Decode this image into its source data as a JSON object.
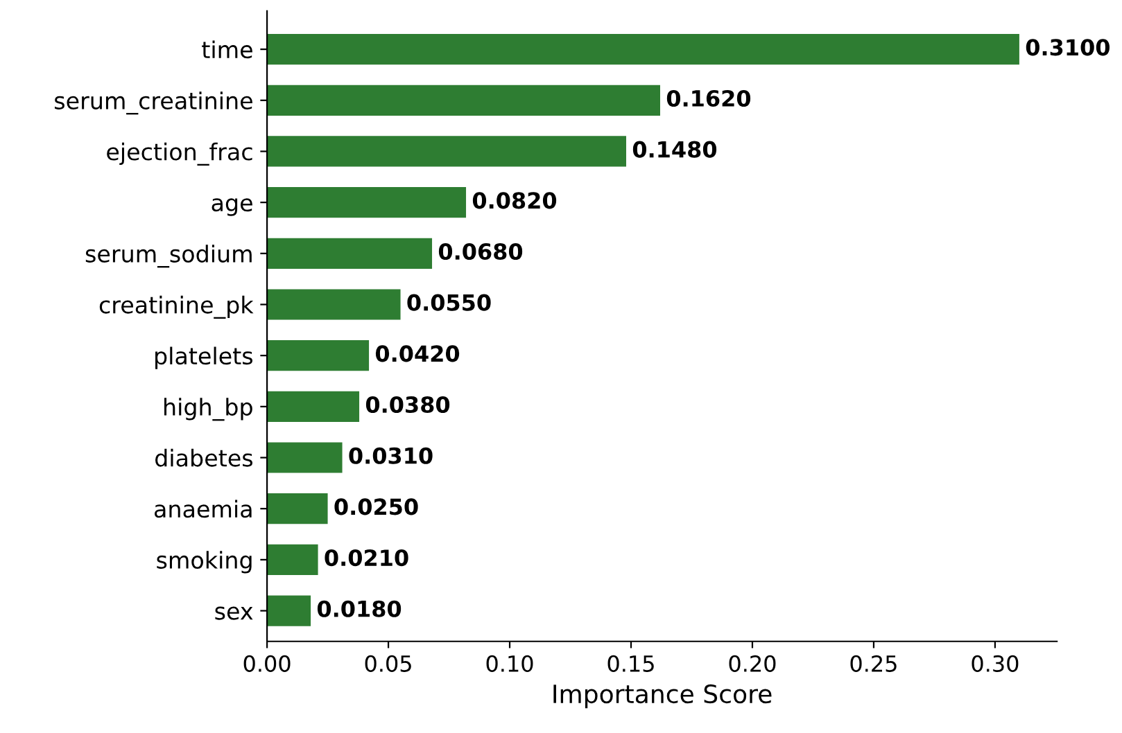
{
  "chart_data": {
    "type": "bar",
    "orientation": "horizontal",
    "xlabel": "Importance Score",
    "categories": [
      "time",
      "serum_creatinine",
      "ejection_frac",
      "age",
      "serum_sodium",
      "creatinine_pk",
      "platelets",
      "high_bp",
      "diabetes",
      "anaemia",
      "smoking",
      "sex"
    ],
    "values": [
      0.31,
      0.162,
      0.148,
      0.082,
      0.068,
      0.055,
      0.042,
      0.038,
      0.031,
      0.025,
      0.021,
      0.018
    ],
    "value_labels": [
      "0.3100",
      "0.1620",
      "0.1480",
      "0.0820",
      "0.0680",
      "0.0550",
      "0.0420",
      "0.0380",
      "0.0310",
      "0.0250",
      "0.0210",
      "0.0180"
    ],
    "color": "#2e7d32",
    "xlim": [
      0,
      0.3255
    ],
    "xticks": [
      {
        "value": 0,
        "label": "0.00"
      },
      {
        "value": 0.05,
        "label": "0.05"
      },
      {
        "value": 0.1,
        "label": "0.10"
      },
      {
        "value": 0.15,
        "label": "0.15"
      },
      {
        "value": 0.2,
        "label": "0.20"
      },
      {
        "value": 0.25,
        "label": "0.25"
      },
      {
        "value": 0.3,
        "label": "0.30"
      }
    ],
    "grid": false,
    "legend": false
  }
}
